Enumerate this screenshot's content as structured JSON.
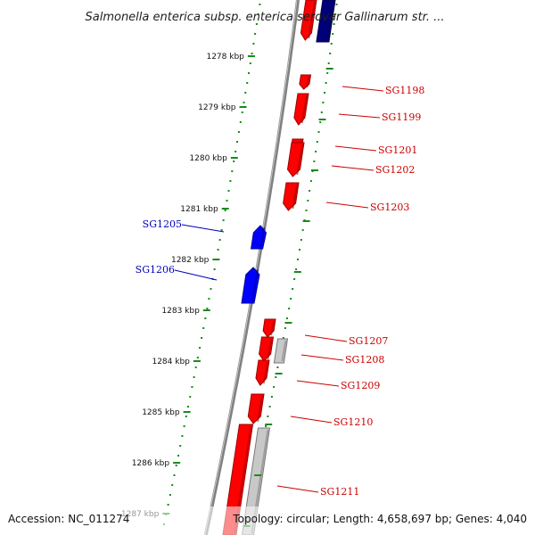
{
  "title": "Salmonella enterica subsp. enterica serovar Gallinarum str. ...",
  "footer": {
    "accession": "Accession: NC_011274",
    "summary": "Topology: circular; Length: 4,658,697 bp; Genes: 4,040"
  },
  "colors": {
    "forward_gene": "#ff0000",
    "reverse_gene": "#0000ff",
    "other_gene": "#c8c8c8",
    "dark_reverse_gene": "#00007a",
    "backbone": "#808080",
    "tick": "#1a8a1a",
    "forward_label": "#cc0000",
    "reverse_label": "#0000bb"
  },
  "scale_ticks": [
    {
      "label": "1278 kbp"
    },
    {
      "label": "1279 kbp"
    },
    {
      "label": "1280 kbp"
    },
    {
      "label": "1281 kbp"
    },
    {
      "label": "1282 kbp"
    },
    {
      "label": "1283 kbp"
    },
    {
      "label": "1284 kbp"
    },
    {
      "label": "1285 kbp"
    },
    {
      "label": "1286 kbp"
    },
    {
      "label": "1287 kbp"
    }
  ],
  "gene_labels": [
    {
      "name": "SG1198",
      "strand": "forward"
    },
    {
      "name": "SG1199",
      "strand": "forward"
    },
    {
      "name": "SG1201",
      "strand": "forward"
    },
    {
      "name": "SG1202",
      "strand": "forward"
    },
    {
      "name": "SG1203",
      "strand": "forward"
    },
    {
      "name": "SG1205",
      "strand": "reverse"
    },
    {
      "name": "SG1206",
      "strand": "reverse"
    },
    {
      "name": "SG1207",
      "strand": "forward"
    },
    {
      "name": "SG1208",
      "strand": "forward"
    },
    {
      "name": "SG1209",
      "strand": "forward"
    },
    {
      "name": "SG1210",
      "strand": "forward"
    },
    {
      "name": "SG1211",
      "strand": "forward"
    }
  ]
}
